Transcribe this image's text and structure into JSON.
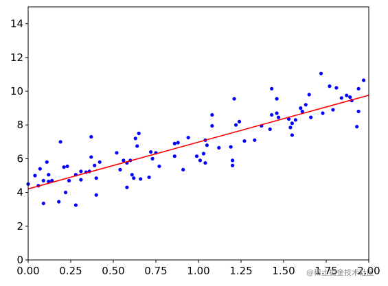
{
  "chart_data": {
    "type": "scatter",
    "title": "",
    "xlabel": "",
    "ylabel": "",
    "xlim": [
      0.0,
      2.0
    ],
    "ylim": [
      0,
      15
    ],
    "grid": false,
    "legend": "none",
    "x_ticks": [
      0.0,
      0.25,
      0.5,
      0.75,
      1.0,
      1.25,
      1.5,
      1.75,
      2.0
    ],
    "x_tick_labels": [
      "0.00",
      "0.25",
      "0.50",
      "0.75",
      "1.00",
      "1.25",
      "1.50",
      "1.75",
      "2.00"
    ],
    "y_ticks": [
      0,
      2,
      4,
      6,
      8,
      10,
      12,
      14
    ],
    "y_tick_labels": [
      "0",
      "2",
      "4",
      "6",
      "8",
      "10",
      "12",
      "14"
    ],
    "series": [
      {
        "kind": "scatter",
        "color": "#0000ff",
        "points": [
          [
            0.0,
            4.5
          ],
          [
            0.04,
            5.0
          ],
          [
            0.06,
            4.4
          ],
          [
            0.07,
            5.4
          ],
          [
            0.09,
            4.7
          ],
          [
            0.09,
            3.35
          ],
          [
            0.11,
            5.8
          ],
          [
            0.12,
            5.05
          ],
          [
            0.12,
            4.65
          ],
          [
            0.14,
            4.7
          ],
          [
            0.18,
            3.45
          ],
          [
            0.19,
            7.0
          ],
          [
            0.21,
            5.5
          ],
          [
            0.22,
            4.0
          ],
          [
            0.23,
            5.55
          ],
          [
            0.24,
            4.7
          ],
          [
            0.28,
            5.05
          ],
          [
            0.28,
            3.25
          ],
          [
            0.31,
            5.25
          ],
          [
            0.31,
            4.75
          ],
          [
            0.34,
            5.2
          ],
          [
            0.36,
            5.25
          ],
          [
            0.37,
            6.1
          ],
          [
            0.37,
            7.3
          ],
          [
            0.39,
            5.6
          ],
          [
            0.4,
            4.85
          ],
          [
            0.4,
            3.85
          ],
          [
            0.42,
            5.8
          ],
          [
            0.52,
            6.35
          ],
          [
            0.54,
            5.35
          ],
          [
            0.56,
            5.9
          ],
          [
            0.58,
            5.75
          ],
          [
            0.58,
            4.3
          ],
          [
            0.6,
            5.9
          ],
          [
            0.61,
            5.05
          ],
          [
            0.62,
            4.85
          ],
          [
            0.63,
            7.2
          ],
          [
            0.64,
            6.75
          ],
          [
            0.65,
            7.5
          ],
          [
            0.66,
            4.8
          ],
          [
            0.71,
            4.9
          ],
          [
            0.72,
            6.4
          ],
          [
            0.73,
            6.0
          ],
          [
            0.75,
            6.35
          ],
          [
            0.77,
            5.55
          ],
          [
            0.86,
            6.15
          ],
          [
            0.86,
            6.9
          ],
          [
            0.88,
            6.95
          ],
          [
            0.91,
            5.35
          ],
          [
            0.94,
            7.25
          ],
          [
            0.99,
            6.15
          ],
          [
            1.01,
            5.9
          ],
          [
            1.03,
            6.3
          ],
          [
            1.04,
            5.75
          ],
          [
            1.04,
            7.1
          ],
          [
            1.05,
            6.8
          ],
          [
            1.08,
            7.95
          ],
          [
            1.08,
            8.6
          ],
          [
            1.12,
            6.65
          ],
          [
            1.19,
            6.7
          ],
          [
            1.2,
            5.9
          ],
          [
            1.2,
            5.6
          ],
          [
            1.21,
            9.55
          ],
          [
            1.22,
            8.0
          ],
          [
            1.24,
            8.2
          ],
          [
            1.27,
            7.05
          ],
          [
            1.33,
            7.1
          ],
          [
            1.37,
            7.95
          ],
          [
            1.42,
            7.75
          ],
          [
            1.43,
            8.6
          ],
          [
            1.43,
            10.15
          ],
          [
            1.46,
            9.55
          ],
          [
            1.46,
            8.7
          ],
          [
            1.47,
            8.45
          ],
          [
            1.53,
            8.35
          ],
          [
            1.54,
            7.85
          ],
          [
            1.55,
            7.4
          ],
          [
            1.55,
            8.1
          ],
          [
            1.57,
            8.3
          ],
          [
            1.6,
            9.0
          ],
          [
            1.61,
            8.8
          ],
          [
            1.63,
            9.2
          ],
          [
            1.65,
            9.8
          ],
          [
            1.66,
            8.45
          ],
          [
            1.72,
            11.05
          ],
          [
            1.73,
            8.7
          ],
          [
            1.77,
            10.3
          ],
          [
            1.79,
            8.9
          ],
          [
            1.81,
            10.2
          ],
          [
            1.84,
            9.6
          ],
          [
            1.87,
            9.75
          ],
          [
            1.89,
            9.65
          ],
          [
            1.9,
            9.45
          ],
          [
            1.93,
            7.9
          ],
          [
            1.94,
            8.8
          ],
          [
            1.94,
            10.15
          ],
          [
            1.97,
            10.65
          ]
        ]
      },
      {
        "kind": "line",
        "color": "#ff0000",
        "points": [
          [
            0.0,
            4.21
          ],
          [
            2.0,
            9.76
          ]
        ]
      }
    ]
  },
  "watermark": "@稀土掘金技术社区"
}
